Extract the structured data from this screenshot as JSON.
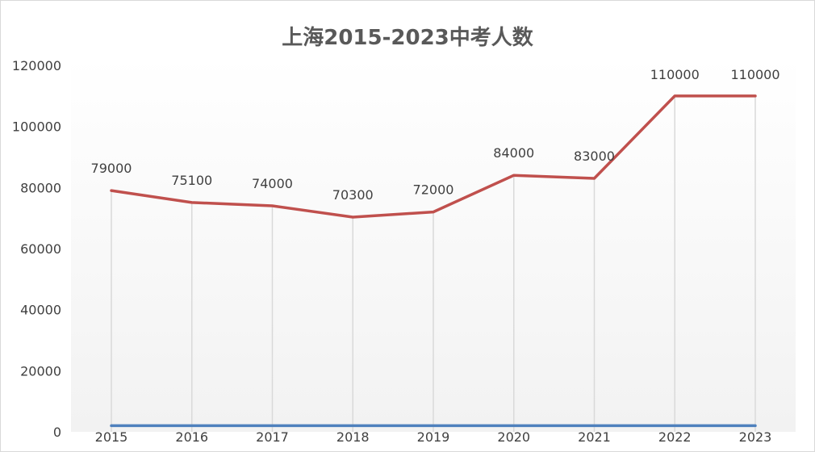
{
  "chart_data": {
    "type": "line",
    "title": "上海2015-2023中考人数",
    "categories": [
      "2015",
      "2016",
      "2017",
      "2018",
      "2019",
      "2020",
      "2021",
      "2022",
      "2023"
    ],
    "series": [
      {
        "values": [
          79000,
          75100,
          74000,
          70300,
          72000,
          84000,
          83000,
          110000,
          110000
        ],
        "color": "#c0504d",
        "data_labels": [
          "79000",
          "75100",
          "74000",
          "70300",
          "72000",
          "84000",
          "83000",
          "110000",
          "110000"
        ]
      },
      {
        "values": [
          2000,
          2000,
          2000,
          2000,
          2000,
          2000,
          2000,
          2000,
          2000
        ],
        "color": "#4f81bd"
      }
    ],
    "y_ticks": [
      "0",
      "20000",
      "40000",
      "60000",
      "80000",
      "100000",
      "120000"
    ],
    "ylim": [
      0,
      120000
    ],
    "xlabel": "",
    "ylabel": "",
    "grid": "vertical drop lines",
    "legend": "none",
    "background_color": "#ffffff",
    "drop_line_color": "#d9d9d9"
  }
}
